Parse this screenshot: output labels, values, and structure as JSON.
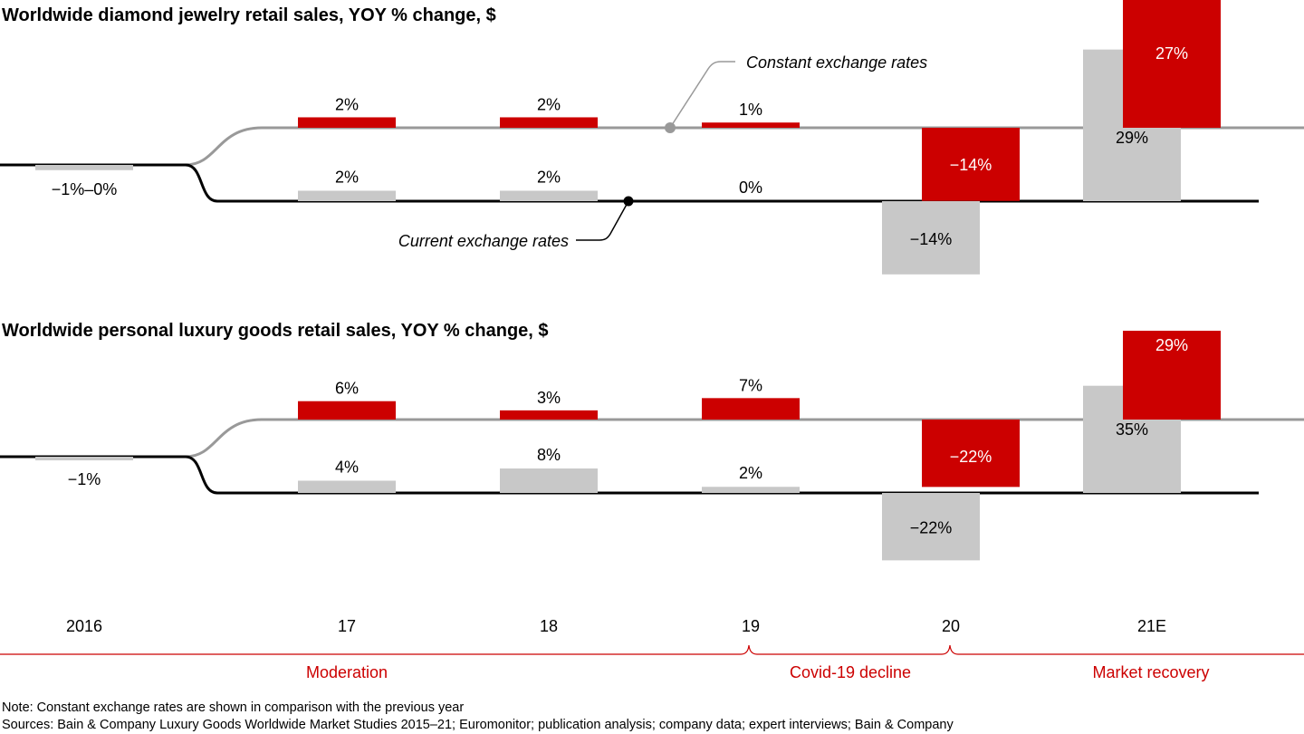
{
  "colors": {
    "constant": "#cc0000",
    "current": "#c8c8c8",
    "constant_line": "#999999",
    "current_line": "#000000",
    "era": "#cc0000"
  },
  "labels": {
    "constant_rates": "Constant exchange rates",
    "current_rates": "Current exchange rates"
  },
  "chart_data": [
    {
      "type": "bar",
      "title": "Worldwide diamond jewelry retail sales, YOY % change, $",
      "categories": [
        "2016",
        "17",
        "18",
        "19",
        "20",
        "21E"
      ],
      "start_label": "−1%–0%",
      "series": [
        {
          "name": "Current exchange rates",
          "values": [
            -1,
            2,
            2,
            0,
            -14,
            29
          ],
          "labels": [
            "",
            "2%",
            "2%",
            "0%",
            "−14%",
            "29%"
          ]
        },
        {
          "name": "Constant exchange rates",
          "values": [
            null,
            2,
            2,
            1,
            -14,
            27
          ],
          "labels": [
            "",
            "2%",
            "2%",
            "1%",
            "−14%",
            "27%"
          ]
        }
      ]
    },
    {
      "type": "bar",
      "title": "Worldwide personal luxury goods retail sales, YOY % change, $",
      "categories": [
        "2016",
        "17",
        "18",
        "19",
        "20",
        "21E"
      ],
      "start_label": "−1%",
      "series": [
        {
          "name": "Current exchange rates",
          "values": [
            -1,
            4,
            8,
            2,
            -22,
            35
          ],
          "labels": [
            "",
            "4%",
            "8%",
            "2%",
            "−22%",
            "35%"
          ]
        },
        {
          "name": "Constant exchange rates",
          "values": [
            null,
            6,
            3,
            7,
            -22,
            29
          ],
          "labels": [
            "",
            "6%",
            "3%",
            "7%",
            "−22%",
            "29%"
          ]
        }
      ]
    }
  ],
  "x_axis": {
    "categories": [
      "2016",
      "17",
      "18",
      "19",
      "20",
      "21E"
    ]
  },
  "eras": [
    "Moderation",
    "Covid-19 decline",
    "Market recovery"
  ],
  "notes": {
    "note": "Note: Constant exchange rates are shown in comparison with the previous year",
    "sources": "Sources: Bain & Company Luxury Goods Worldwide Market Studies 2015–21; Euromonitor; publication analysis; company data; expert interviews; Bain & Company"
  }
}
